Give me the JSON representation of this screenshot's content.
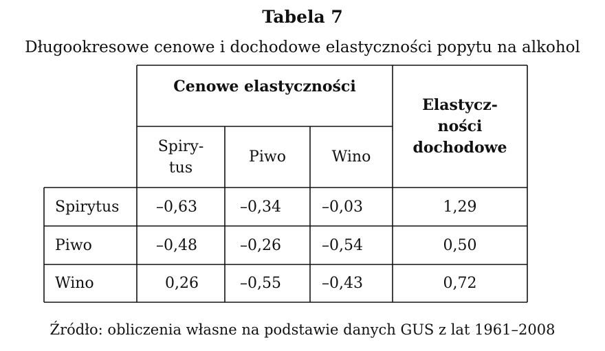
{
  "table_label": "Tabela 7",
  "table_title": "Długookresowe cenowe i dochodowe elastyczności popytu na alkohol",
  "header": {
    "price_group": "Cenowe elastyczności",
    "income_group": "Elastycz-\nności\ndochodowe",
    "columns": [
      "Spiry-\ntus",
      "Piwo",
      "Wino"
    ]
  },
  "rows": [
    {
      "label": "Spirytus",
      "values": [
        "–0,63",
        "–0,34",
        "–0,03"
      ],
      "income": "1,29"
    },
    {
      "label": "Piwo",
      "values": [
        "–0,48",
        "–0,26",
        "–0,54"
      ],
      "income": "0,50"
    },
    {
      "label": "Wino",
      "values": [
        "0,26",
        "–0,55",
        "–0,43"
      ],
      "income": "0,72"
    }
  ],
  "footnote": "Źródło: obliczenia własne na podstawie danych GUS z lat 1961–2008"
}
